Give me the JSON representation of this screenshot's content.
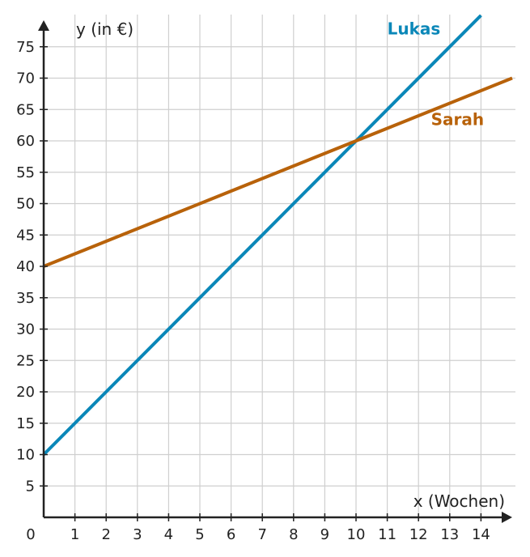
{
  "chart_data": {
    "type": "line",
    "title": "",
    "xlabel": "x (Wochen)",
    "ylabel": "y (in €)",
    "origin_label": "0",
    "xlim": [
      0,
      15
    ],
    "ylim": [
      0,
      80
    ],
    "grid": true,
    "x_ticks": [
      1,
      2,
      3,
      4,
      5,
      6,
      7,
      8,
      9,
      10,
      11,
      12,
      13,
      14
    ],
    "y_ticks": [
      5,
      10,
      15,
      20,
      25,
      30,
      35,
      40,
      45,
      50,
      55,
      60,
      65,
      70,
      75
    ],
    "series": [
      {
        "name": "Lukas",
        "color": "#0a87b8",
        "x": [
          0,
          14
        ],
        "y": [
          10,
          80
        ],
        "label_at": [
          11,
          77
        ]
      },
      {
        "name": "Sarah",
        "color": "#b8620a",
        "x": [
          0,
          15
        ],
        "y": [
          40,
          70
        ],
        "label_at": [
          12.4,
          62.5
        ]
      }
    ]
  }
}
